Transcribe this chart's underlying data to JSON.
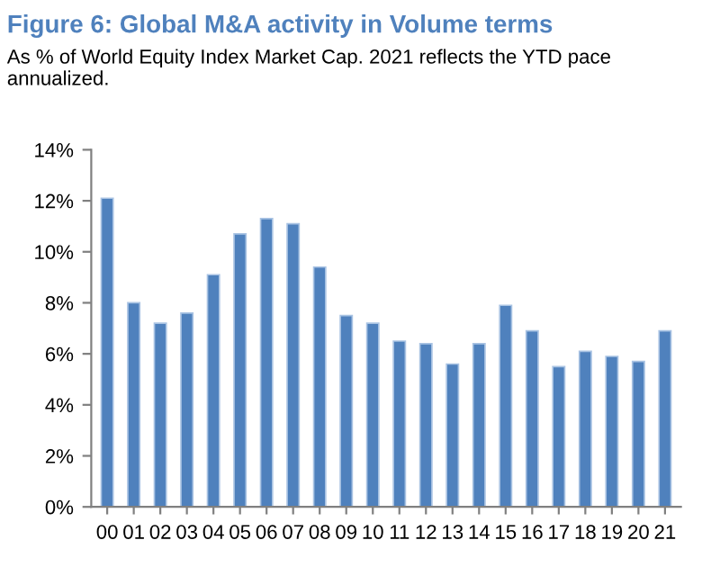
{
  "chart_data": {
    "type": "bar",
    "title": "Figure 6: Global M&A activity in Volume terms",
    "subtitle": "As % of World Equity Index Market Cap. 2021 reflects the YTD pace annualized.",
    "categories": [
      "00",
      "01",
      "02",
      "03",
      "04",
      "05",
      "06",
      "07",
      "08",
      "09",
      "10",
      "11",
      "12",
      "13",
      "14",
      "15",
      "16",
      "17",
      "18",
      "19",
      "20",
      "21"
    ],
    "values": [
      12.1,
      8.0,
      7.2,
      7.6,
      9.1,
      10.7,
      11.3,
      11.1,
      9.4,
      7.5,
      7.2,
      6.5,
      6.4,
      5.6,
      6.4,
      7.9,
      6.9,
      5.5,
      6.1,
      5.9,
      5.7,
      6.9
    ],
    "color": "#4f81bd",
    "ylim": [
      0,
      14
    ],
    "yticks": [
      {
        "value": 0,
        "label": "0%"
      },
      {
        "value": 2,
        "label": "2%"
      },
      {
        "value": 4,
        "label": "4%"
      },
      {
        "value": 6,
        "label": "6%"
      },
      {
        "value": 8,
        "label": "8%"
      },
      {
        "value": 10,
        "label": "10%"
      },
      {
        "value": 12,
        "label": "12%"
      },
      {
        "value": 14,
        "label": "14%"
      }
    ],
    "grid": false,
    "legend": false
  }
}
